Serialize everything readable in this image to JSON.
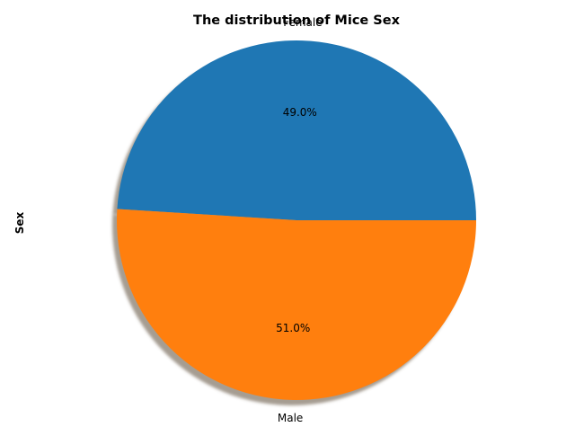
{
  "chart_data": {
    "type": "pie",
    "title": "The distribution of Mice Sex",
    "ylabel": "Sex",
    "labels": [
      "Female",
      "Male"
    ],
    "values": [
      49.0,
      51.0
    ],
    "autopct_labels": [
      "49.0%",
      "51.0%"
    ],
    "colors": [
      "#1f77b4",
      "#ff7f0e"
    ],
    "shadow": true,
    "start_angle_deg": 0,
    "legend": "none"
  }
}
